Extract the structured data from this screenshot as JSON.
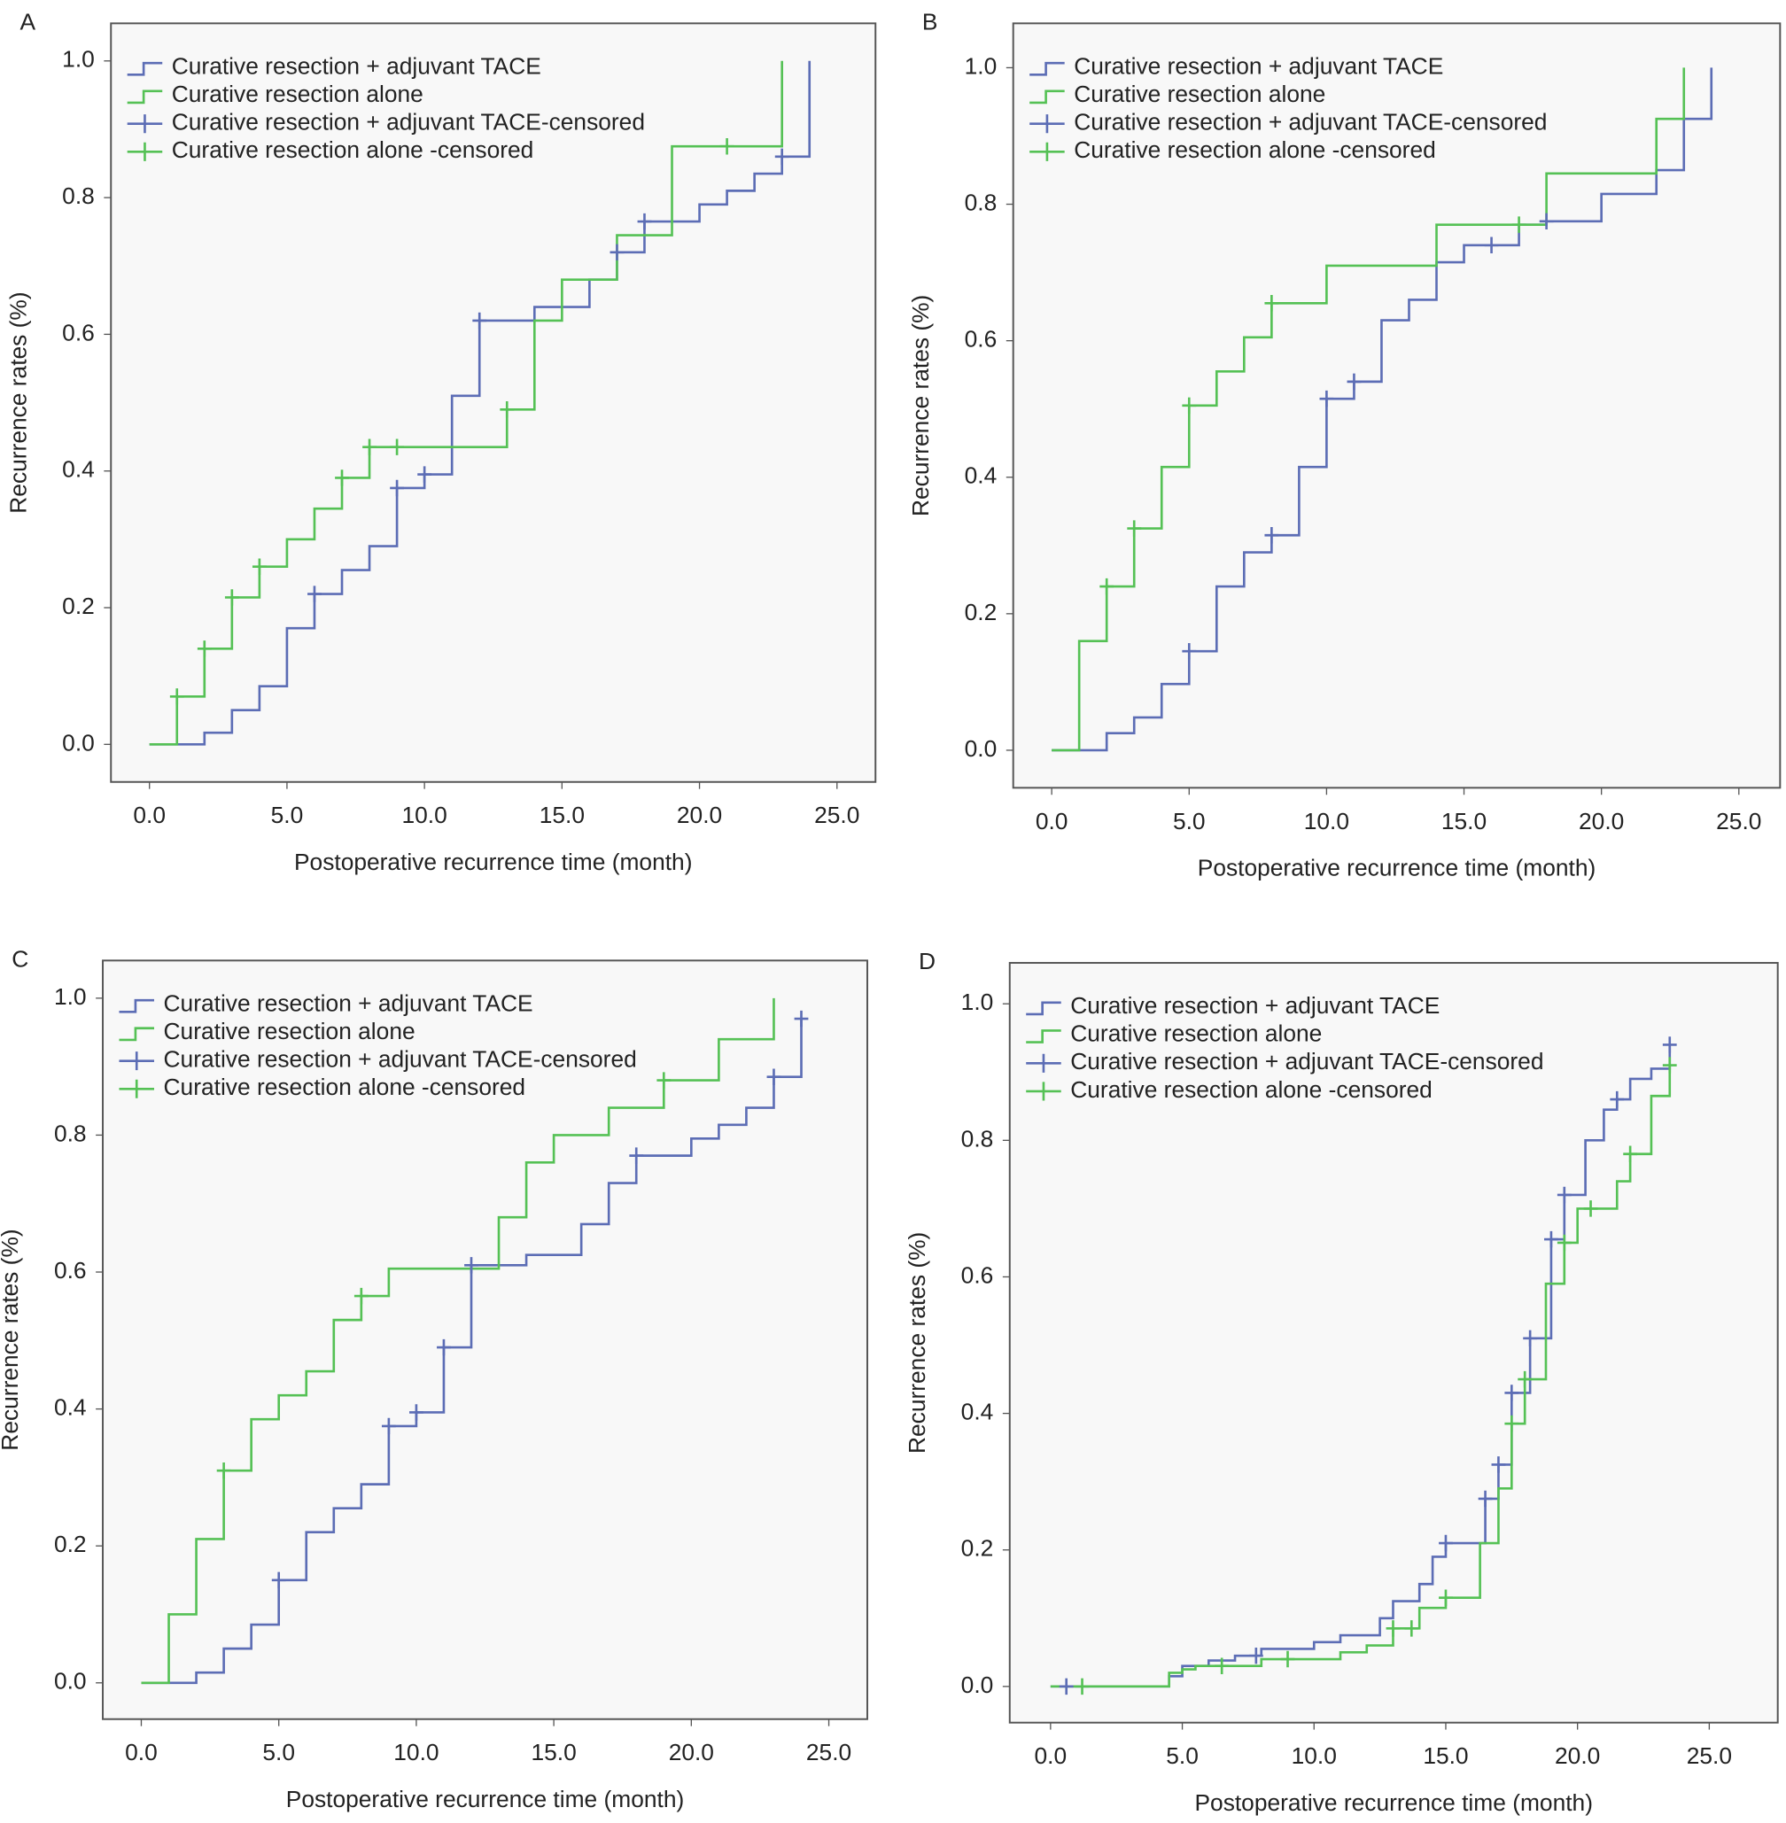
{
  "chart_data": [
    {
      "type": "step",
      "panel": "A",
      "xlabel": "Postoperative recurrence time (month)",
      "ylabel": "Recurrence rates (%)",
      "xlim": [
        -1.4,
        26.4
      ],
      "ylim": [
        -0.055,
        1.055
      ],
      "xticks": [
        {
          "value": 0,
          "label": "0.0"
        },
        {
          "value": 5,
          "label": "5.0"
        },
        {
          "value": 10,
          "label": "10.0"
        },
        {
          "value": 15,
          "label": "15.0"
        },
        {
          "value": 20,
          "label": "20.0"
        },
        {
          "value": 25,
          "label": "25.0"
        }
      ],
      "yticks": [
        {
          "value": 0,
          "label": "0.0"
        },
        {
          "value": 0.2,
          "label": "0.2"
        },
        {
          "value": 0.4,
          "label": "0.4"
        },
        {
          "value": 0.6,
          "label": "0.6"
        },
        {
          "value": 0.8,
          "label": "0.8"
        },
        {
          "value": 1,
          "label": "1.0"
        }
      ],
      "series": [
        {
          "name": "Curative resection + adjuvant TACE",
          "style": "step",
          "color": "#5c6db5",
          "x": [
            0,
            2,
            3,
            4,
            5,
            6,
            7,
            8,
            9,
            10,
            11,
            12,
            14,
            16,
            17,
            18,
            20,
            21,
            22,
            23,
            24
          ],
          "values": [
            0,
            0.017,
            0.05,
            0.085,
            0.17,
            0.22,
            0.255,
            0.29,
            0.375,
            0.395,
            0.51,
            0.62,
            0.64,
            0.68,
            0.72,
            0.765,
            0.79,
            0.81,
            0.835,
            0.86,
            1.0
          ]
        },
        {
          "name": "Curative resection alone",
          "style": "step",
          "color": "#55c155",
          "x": [
            0,
            1,
            2,
            3,
            4,
            5,
            6,
            7,
            8,
            13,
            14,
            15,
            17,
            19,
            23
          ],
          "values": [
            0,
            0.07,
            0.14,
            0.215,
            0.26,
            0.3,
            0.345,
            0.39,
            0.435,
            0.49,
            0.62,
            0.68,
            0.745,
            0.875,
            1.0
          ]
        },
        {
          "name": "Curative resection + adjuvant TACE-censored",
          "style": "censored",
          "color": "#5c6db5",
          "x": [
            6,
            9,
            10,
            12,
            17,
            18,
            23
          ],
          "values": [
            0.22,
            0.375,
            0.395,
            0.62,
            0.72,
            0.765,
            0.86
          ]
        },
        {
          "name": "Curative resection alone -censored",
          "style": "censored",
          "color": "#55c155",
          "x": [
            1,
            2,
            3,
            4,
            7,
            8,
            9,
            13,
            21
          ],
          "values": [
            0.07,
            0.14,
            0.215,
            0.26,
            0.39,
            0.435,
            0.435,
            0.49,
            0.875
          ]
        }
      ]
    },
    {
      "type": "step",
      "panel": "B",
      "xlabel": "Postoperative recurrence time (month)",
      "ylabel": "Recurrence rates (%)",
      "xlim": [
        -1.4,
        26.5
      ],
      "ylim": [
        -0.055,
        1.065
      ],
      "xticks": [
        {
          "value": 0,
          "label": "0.0"
        },
        {
          "value": 5,
          "label": "5.0"
        },
        {
          "value": 10,
          "label": "10.0"
        },
        {
          "value": 15,
          "label": "15.0"
        },
        {
          "value": 20,
          "label": "20.0"
        },
        {
          "value": 25,
          "label": "25.0"
        }
      ],
      "yticks": [
        {
          "value": 0,
          "label": "0.0"
        },
        {
          "value": 0.2,
          "label": "0.2"
        },
        {
          "value": 0.4,
          "label": "0.4"
        },
        {
          "value": 0.6,
          "label": "0.6"
        },
        {
          "value": 0.8,
          "label": "0.8"
        },
        {
          "value": 1,
          "label": "1.0"
        }
      ],
      "series": [
        {
          "name": "Curative resection + adjuvant TACE",
          "style": "step",
          "color": "#5c6db5",
          "x": [
            0,
            2,
            3,
            4,
            5,
            6,
            7,
            8,
            9,
            10,
            11,
            12,
            13,
            14,
            15,
            17,
            18,
            20,
            22,
            23,
            24
          ],
          "values": [
            0,
            0.025,
            0.048,
            0.097,
            0.145,
            0.24,
            0.29,
            0.315,
            0.415,
            0.515,
            0.54,
            0.63,
            0.66,
            0.715,
            0.74,
            0.77,
            0.775,
            0.815,
            0.85,
            0.925,
            1.0
          ]
        },
        {
          "name": "Curative resection alone",
          "style": "step",
          "color": "#55c155",
          "x": [
            0,
            1,
            2,
            3,
            4,
            5,
            6,
            7,
            8,
            10,
            14,
            18,
            22,
            23
          ],
          "values": [
            0,
            0.16,
            0.24,
            0.325,
            0.415,
            0.505,
            0.555,
            0.605,
            0.655,
            0.71,
            0.77,
            0.845,
            0.925,
            1.0
          ]
        },
        {
          "name": "Curative resection + adjuvant TACE-censored",
          "style": "censored",
          "color": "#5c6db5",
          "x": [
            5,
            8,
            10,
            11,
            16,
            18
          ],
          "values": [
            0.145,
            0.315,
            0.515,
            0.54,
            0.74,
            0.775
          ]
        },
        {
          "name": "Curative resection alone -censored",
          "style": "censored",
          "color": "#55c155",
          "x": [
            2,
            3,
            5,
            8,
            17
          ],
          "values": [
            0.24,
            0.325,
            0.505,
            0.655,
            0.77
          ]
        }
      ]
    },
    {
      "type": "step",
      "panel": "C",
      "xlabel": "Postoperative recurrence time (month)",
      "ylabel": "Recurrence rates (%)",
      "xlim": [
        -1.4,
        26.4
      ],
      "ylim": [
        -0.053,
        1.055
      ],
      "xticks": [
        {
          "value": 0,
          "label": "0.0"
        },
        {
          "value": 5,
          "label": "5.0"
        },
        {
          "value": 10,
          "label": "10.0"
        },
        {
          "value": 15,
          "label": "15.0"
        },
        {
          "value": 20,
          "label": "20.0"
        },
        {
          "value": 25,
          "label": "25.0"
        }
      ],
      "yticks": [
        {
          "value": 0,
          "label": "0.0"
        },
        {
          "value": 0.2,
          "label": "0.2"
        },
        {
          "value": 0.4,
          "label": "0.4"
        },
        {
          "value": 0.6,
          "label": "0.6"
        },
        {
          "value": 0.8,
          "label": "0.8"
        },
        {
          "value": 1,
          "label": "1.0"
        }
      ],
      "series": [
        {
          "name": "Curative resection + adjuvant TACE",
          "style": "step",
          "color": "#5c6db5",
          "x": [
            0,
            2,
            3,
            4,
            5,
            6,
            7,
            8,
            9,
            10,
            11,
            12,
            14,
            16,
            17,
            18,
            20,
            21,
            22,
            23,
            24
          ],
          "values": [
            0,
            0.015,
            0.05,
            0.085,
            0.15,
            0.22,
            0.255,
            0.29,
            0.375,
            0.395,
            0.49,
            0.61,
            0.625,
            0.67,
            0.73,
            0.77,
            0.795,
            0.815,
            0.84,
            0.885,
            0.97
          ]
        },
        {
          "name": "Curative resection alone",
          "style": "step",
          "color": "#55c155",
          "x": [
            0,
            1,
            2,
            3,
            4,
            5,
            6,
            7,
            8,
            9,
            13,
            14,
            15,
            17,
            19,
            21,
            23
          ],
          "values": [
            0,
            0.1,
            0.21,
            0.31,
            0.385,
            0.42,
            0.455,
            0.53,
            0.565,
            0.605,
            0.68,
            0.76,
            0.8,
            0.84,
            0.88,
            0.94,
            1.0
          ]
        },
        {
          "name": "Curative resection + adjuvant TACE-censored",
          "style": "censored",
          "color": "#5c6db5",
          "x": [
            5,
            9,
            10,
            11,
            12,
            18,
            23,
            24
          ],
          "values": [
            0.15,
            0.375,
            0.395,
            0.49,
            0.61,
            0.77,
            0.885,
            0.97
          ]
        },
        {
          "name": "Curative resection alone -censored",
          "style": "censored",
          "color": "#55c155",
          "x": [
            3,
            8,
            19
          ],
          "values": [
            0.31,
            0.565,
            0.88
          ]
        }
      ]
    },
    {
      "type": "step",
      "panel": "D",
      "xlabel": "Postoperative recurrence time (month)",
      "ylabel": "Recurrence rates (%)",
      "xlim": [
        -1.55,
        27.6
      ],
      "ylim": [
        -0.053,
        1.06
      ],
      "xticks": [
        {
          "value": 0,
          "label": "0.0"
        },
        {
          "value": 5,
          "label": "5.0"
        },
        {
          "value": 10,
          "label": "10.0"
        },
        {
          "value": 15,
          "label": "15.0"
        },
        {
          "value": 20,
          "label": "20.0"
        },
        {
          "value": 25,
          "label": "25.0"
        }
      ],
      "yticks": [
        {
          "value": 0,
          "label": "0.0"
        },
        {
          "value": 0.2,
          "label": "0.2"
        },
        {
          "value": 0.4,
          "label": "0.4"
        },
        {
          "value": 0.6,
          "label": "0.6"
        },
        {
          "value": 0.8,
          "label": "0.8"
        },
        {
          "value": 1,
          "label": "1.0"
        }
      ],
      "series": [
        {
          "name": "Curative resection + adjuvant TACE",
          "style": "step",
          "color": "#5c6db5",
          "x": [
            0,
            4.5,
            5,
            6,
            7,
            8,
            10,
            11,
            12.5,
            13,
            14,
            14.5,
            15,
            16.5,
            17,
            17.5,
            18.2,
            19,
            19.5,
            20.3,
            21,
            21.5,
            22,
            22.8,
            23.5
          ],
          "values": [
            0,
            0.015,
            0.03,
            0.038,
            0.045,
            0.055,
            0.065,
            0.075,
            0.1,
            0.125,
            0.15,
            0.19,
            0.21,
            0.275,
            0.325,
            0.43,
            0.51,
            0.655,
            0.72,
            0.8,
            0.845,
            0.86,
            0.89,
            0.905,
            0.94
          ]
        },
        {
          "name": "Curative resection alone",
          "style": "step",
          "color": "#55c155",
          "x": [
            0,
            4.5,
            5,
            5.5,
            8,
            11,
            12,
            13,
            14,
            15,
            16.3,
            17,
            17.5,
            18,
            18.8,
            19.5,
            20,
            21.5,
            22,
            22.8,
            23.5
          ],
          "values": [
            0,
            0.02,
            0.025,
            0.03,
            0.04,
            0.05,
            0.06,
            0.085,
            0.115,
            0.13,
            0.21,
            0.29,
            0.385,
            0.45,
            0.59,
            0.65,
            0.7,
            0.74,
            0.78,
            0.865,
            0.91
          ]
        },
        {
          "name": "Curative resection + adjuvant TACE-censored",
          "style": "censored",
          "color": "#5c6db5",
          "x": [
            0.6,
            7.8,
            15,
            16.5,
            17,
            17.5,
            18.2,
            19,
            19.5,
            21.5,
            23.5
          ],
          "values": [
            0,
            0.045,
            0.21,
            0.275,
            0.325,
            0.43,
            0.51,
            0.655,
            0.72,
            0.86,
            0.94
          ]
        },
        {
          "name": "Curative resection alone -censored",
          "style": "censored",
          "color": "#55c155",
          "x": [
            1.2,
            6.5,
            9,
            13,
            13.7,
            15,
            17.5,
            18,
            19.5,
            20.5,
            22,
            23.5
          ],
          "values": [
            0,
            0.03,
            0.04,
            0.085,
            0.085,
            0.13,
            0.385,
            0.45,
            0.65,
            0.7,
            0.78,
            0.91
          ]
        }
      ]
    }
  ]
}
